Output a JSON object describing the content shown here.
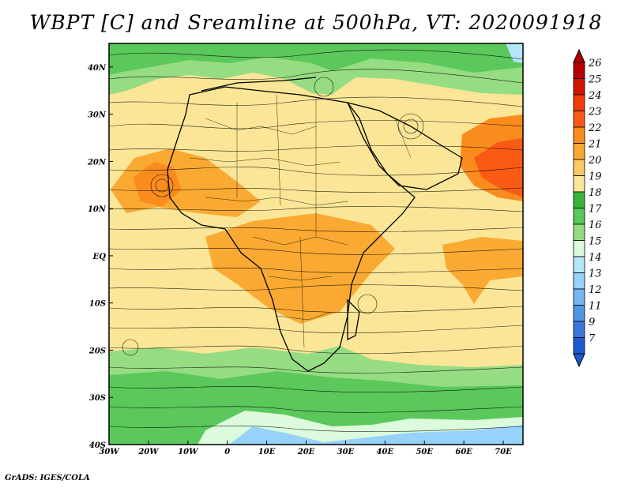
{
  "title": "WBPT [C] and Sreamline at 500hPa, VT: 2020091918",
  "credit": "GrADS: IGES/COLA",
  "map": {
    "lon_range": [
      -30,
      75
    ],
    "lat_range": [
      -40,
      45
    ],
    "lon_ticks": [
      {
        "value": -30,
        "label": "30W"
      },
      {
        "value": -20,
        "label": "20W"
      },
      {
        "value": -10,
        "label": "10W"
      },
      {
        "value": 0,
        "label": "0"
      },
      {
        "value": 10,
        "label": "10E"
      },
      {
        "value": 20,
        "label": "20E"
      },
      {
        "value": 30,
        "label": "30E"
      },
      {
        "value": 40,
        "label": "40E"
      },
      {
        "value": 50,
        "label": "50E"
      },
      {
        "value": 60,
        "label": "60E"
      },
      {
        "value": 70,
        "label": "70E"
      }
    ],
    "lat_ticks": [
      {
        "value": 40,
        "label": "40N"
      },
      {
        "value": 30,
        "label": "30N"
      },
      {
        "value": 20,
        "label": "20N"
      },
      {
        "value": 10,
        "label": "10N"
      },
      {
        "value": 0,
        "label": "EQ"
      },
      {
        "value": -10,
        "label": "10S"
      },
      {
        "value": -20,
        "label": "20S"
      },
      {
        "value": -30,
        "label": "30S"
      },
      {
        "value": -40,
        "label": "40S"
      }
    ]
  },
  "colorbar": {
    "levels": [
      {
        "label": "26",
        "color": "#b40000"
      },
      {
        "label": "25",
        "color": "#d21400"
      },
      {
        "label": "24",
        "color": "#f03c0a"
      },
      {
        "label": "23",
        "color": "#fa5a14"
      },
      {
        "label": "22",
        "color": "#fa8c1e"
      },
      {
        "label": "21",
        "color": "#faaa32"
      },
      {
        "label": "20",
        "color": "#fac864"
      },
      {
        "label": "19",
        "color": "#fae696"
      },
      {
        "label": "18",
        "color": "#3cb43c"
      },
      {
        "label": "17",
        "color": "#5ac85a"
      },
      {
        "label": "16",
        "color": "#96dc82"
      },
      {
        "label": "15",
        "color": "#dcfadc"
      },
      {
        "label": "14",
        "color": "#b4e6fa"
      },
      {
        "label": "13",
        "color": "#96d2fa"
      },
      {
        "label": "12",
        "color": "#78b4f0"
      },
      {
        "label": "11",
        "color": "#5096e6"
      },
      {
        "label": "9",
        "color": "#3c78dc"
      },
      {
        "label": "7",
        "color": "#1e5ad2"
      }
    ]
  }
}
